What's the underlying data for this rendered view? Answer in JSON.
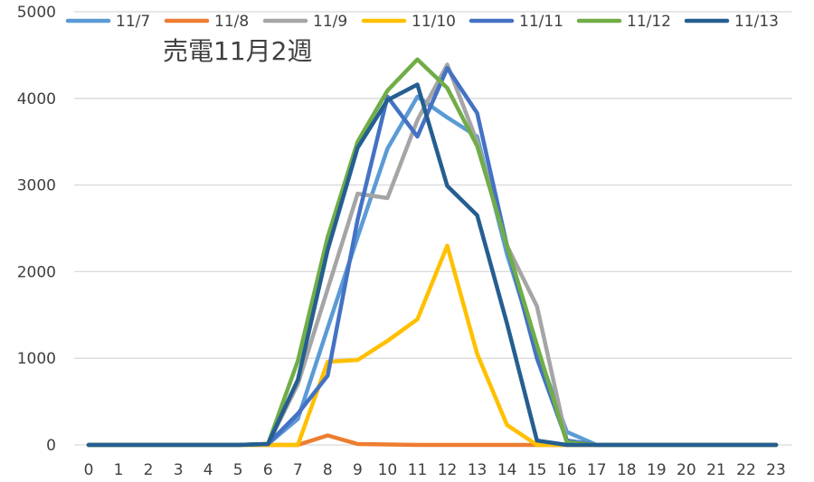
{
  "chart_data": {
    "type": "line",
    "title": "売電11月2週",
    "xlabel": "",
    "ylabel": "",
    "x": [
      0,
      1,
      2,
      3,
      4,
      5,
      6,
      7,
      8,
      9,
      10,
      11,
      12,
      13,
      14,
      15,
      16,
      17,
      18,
      19,
      20,
      21,
      22,
      23
    ],
    "ylim": [
      0,
      5000
    ],
    "yticks": [
      0,
      1000,
      2000,
      3000,
      4000,
      5000
    ],
    "grid": true,
    "legend_position": "top",
    "series": [
      {
        "name": "11/7",
        "color": "#5b9bd5",
        "values": [
          0,
          0,
          0,
          0,
          0,
          0,
          10,
          300,
          1350,
          2400,
          3420,
          4020,
          3780,
          3560,
          2200,
          1100,
          150,
          0,
          0,
          0,
          0,
          0,
          0,
          0
        ]
      },
      {
        "name": "11/8",
        "color": "#ed7d31",
        "values": [
          0,
          0,
          0,
          0,
          0,
          0,
          0,
          0,
          110,
          10,
          5,
          0,
          0,
          0,
          0,
          0,
          0,
          0,
          0,
          0,
          0,
          0,
          0,
          0
        ]
      },
      {
        "name": "11/9",
        "color": "#a5a5a5",
        "values": [
          0,
          0,
          0,
          0,
          0,
          0,
          10,
          700,
          1800,
          2900,
          2850,
          3750,
          4390,
          3500,
          2300,
          1600,
          50,
          0,
          0,
          0,
          0,
          0,
          0,
          0
        ]
      },
      {
        "name": "11/10",
        "color": "#ffc000",
        "values": [
          0,
          0,
          0,
          0,
          0,
          0,
          0,
          0,
          960,
          980,
          1200,
          1450,
          2300,
          1050,
          230,
          0,
          0,
          0,
          0,
          0,
          0,
          0,
          0,
          0
        ]
      },
      {
        "name": "11/11",
        "color": "#4472c4",
        "values": [
          0,
          0,
          0,
          0,
          0,
          0,
          10,
          360,
          800,
          2600,
          4020,
          3560,
          4350,
          3830,
          2300,
          1000,
          50,
          0,
          0,
          0,
          0,
          0,
          0,
          0
        ]
      },
      {
        "name": "11/12",
        "color": "#70ad47",
        "values": [
          0,
          0,
          0,
          0,
          0,
          0,
          10,
          970,
          2400,
          3500,
          4090,
          4450,
          4120,
          3450,
          2300,
          1150,
          30,
          0,
          0,
          0,
          0,
          0,
          0,
          0
        ]
      },
      {
        "name": "11/13",
        "color": "#255e91",
        "values": [
          0,
          0,
          0,
          0,
          0,
          0,
          10,
          750,
          2250,
          3430,
          3980,
          4160,
          2990,
          2650,
          1400,
          50,
          0,
          0,
          0,
          0,
          0,
          0,
          0,
          0
        ]
      }
    ]
  }
}
